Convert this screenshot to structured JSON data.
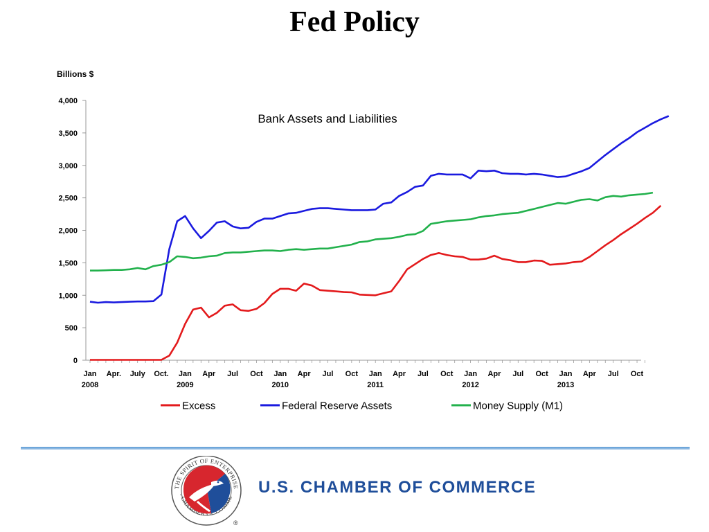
{
  "slide": {
    "title": "Fed Policy"
  },
  "chart_data": {
    "type": "line",
    "title": "Bank Assets and Liabilities",
    "ylabel": "Billions $",
    "ylim": [
      0,
      4000
    ],
    "yticks": [
      "0",
      "500",
      "1,000",
      "1,500",
      "2,000",
      "2,500",
      "3,000",
      "3,500",
      "4,000"
    ],
    "x_tick_labels": [
      {
        "month": 0,
        "label": "Jan",
        "year": "2008"
      },
      {
        "month": 3,
        "label": "Apr.",
        "year": ""
      },
      {
        "month": 6,
        "label": "July",
        "year": ""
      },
      {
        "month": 9,
        "label": "Oct.",
        "year": ""
      },
      {
        "month": 12,
        "label": "Jan",
        "year": "2009"
      },
      {
        "month": 15,
        "label": "Apr",
        "year": ""
      },
      {
        "month": 18,
        "label": "Jul",
        "year": ""
      },
      {
        "month": 21,
        "label": "Oct",
        "year": ""
      },
      {
        "month": 24,
        "label": "Jan",
        "year": "2010"
      },
      {
        "month": 27,
        "label": "Apr",
        "year": ""
      },
      {
        "month": 30,
        "label": "Jul",
        "year": ""
      },
      {
        "month": 33,
        "label": "Oct",
        "year": ""
      },
      {
        "month": 36,
        "label": "Jan",
        "year": "2011"
      },
      {
        "month": 39,
        "label": "Apr",
        "year": ""
      },
      {
        "month": 42,
        "label": "Jul",
        "year": ""
      },
      {
        "month": 45,
        "label": "Oct",
        "year": ""
      },
      {
        "month": 48,
        "label": "Jan",
        "year": "2012"
      },
      {
        "month": 51,
        "label": "Apr",
        "year": ""
      },
      {
        "month": 54,
        "label": "Jul",
        "year": ""
      },
      {
        "month": 57,
        "label": "Oct",
        "year": ""
      },
      {
        "month": 60,
        "label": "Jan",
        "year": "2013"
      },
      {
        "month": 63,
        "label": "Apr",
        "year": ""
      },
      {
        "month": 66,
        "label": "Jul",
        "year": ""
      },
      {
        "month": 69,
        "label": "Oct",
        "year": ""
      }
    ],
    "legend_position": "bottom",
    "series": [
      {
        "name": "Excess",
        "color": "#e31a1c",
        "values": [
          5,
          5,
          5,
          5,
          5,
          5,
          5,
          5,
          5,
          5,
          70,
          270,
          560,
          780,
          810,
          660,
          730,
          840,
          860,
          770,
          760,
          790,
          880,
          1020,
          1100,
          1100,
          1070,
          1180,
          1150,
          1080,
          1070,
          1060,
          1050,
          1045,
          1010,
          1005,
          1000,
          1030,
          1060,
          1220,
          1400,
          1480,
          1560,
          1620,
          1650,
          1620,
          1600,
          1590,
          1550,
          1550,
          1565,
          1610,
          1560,
          1540,
          1510,
          1510,
          1535,
          1530,
          1470,
          1480,
          1490,
          1510,
          1520,
          1590,
          1680,
          1770,
          1850,
          1940,
          2020,
          2100,
          2190,
          2270,
          2380
        ]
      },
      {
        "name": "Federal Reserve Assets",
        "color": "#1a1adf",
        "values": [
          900,
          885,
          895,
          890,
          895,
          900,
          905,
          905,
          910,
          1010,
          1710,
          2140,
          2220,
          2030,
          1880,
          1990,
          2120,
          2140,
          2060,
          2030,
          2040,
          2130,
          2180,
          2180,
          2220,
          2260,
          2270,
          2300,
          2330,
          2340,
          2340,
          2330,
          2320,
          2310,
          2310,
          2310,
          2320,
          2410,
          2430,
          2530,
          2590,
          2670,
          2690,
          2840,
          2870,
          2860,
          2860,
          2860,
          2800,
          2920,
          2910,
          2920,
          2880,
          2870,
          2870,
          2860,
          2870,
          2860,
          2840,
          2820,
          2830,
          2870,
          2910,
          2960,
          3060,
          3160,
          3250,
          3340,
          3420,
          3510,
          3580,
          3650,
          3710,
          3760
        ]
      },
      {
        "name": "Money Supply (M1)",
        "color": "#22b14c",
        "values": [
          1380,
          1380,
          1385,
          1390,
          1390,
          1400,
          1420,
          1400,
          1450,
          1470,
          1510,
          1600,
          1590,
          1570,
          1580,
          1600,
          1610,
          1650,
          1660,
          1660,
          1670,
          1680,
          1690,
          1690,
          1680,
          1700,
          1710,
          1700,
          1710,
          1720,
          1720,
          1740,
          1760,
          1780,
          1820,
          1830,
          1860,
          1870,
          1880,
          1900,
          1930,
          1940,
          1990,
          2100,
          2120,
          2140,
          2150,
          2160,
          2170,
          2200,
          2220,
          2230,
          2250,
          2260,
          2270,
          2300,
          2330,
          2360,
          2390,
          2420,
          2410,
          2440,
          2470,
          2480,
          2460,
          2510,
          2530,
          2520,
          2540,
          2550,
          2560,
          2580
        ]
      }
    ]
  },
  "footer": {
    "organization": "U.S. CHAMBER OF COMMERCE",
    "seal_text": "THE SPIRIT OF ENTERPRISE · U.S. CHAMBER OF COMMERCE",
    "registered_mark": "®"
  }
}
